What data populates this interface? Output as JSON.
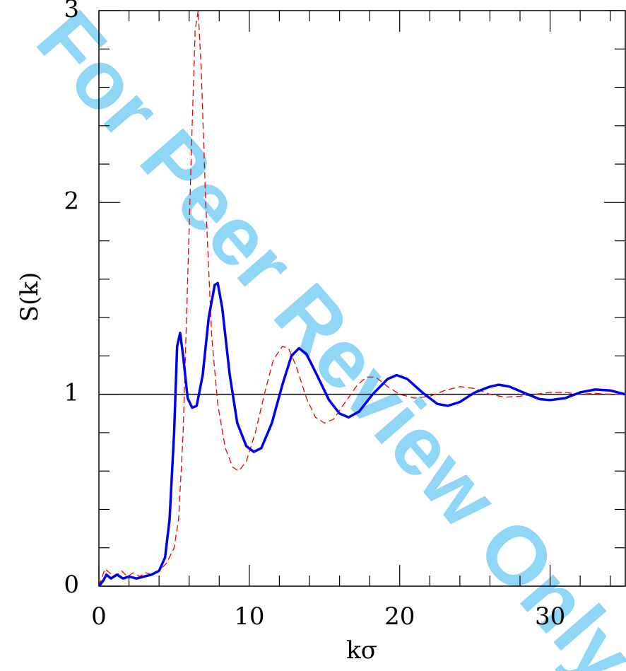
{
  "chart_data": {
    "type": "line",
    "watermark": "For Peer Review Only",
    "xlabel": "kσ",
    "ylabel": "S(k)",
    "xlim": [
      0,
      35
    ],
    "ylim": [
      0,
      3
    ],
    "xticks": [
      0,
      10,
      20,
      30
    ],
    "yticks": [
      0,
      1,
      2,
      3
    ],
    "xminorticks": [
      2,
      4,
      6,
      8,
      12,
      14,
      16,
      18,
      22,
      24,
      26,
      28,
      32,
      34
    ],
    "yminorticks": [
      0.2,
      0.4,
      0.6,
      0.8,
      1.2,
      1.4,
      1.6,
      1.8,
      2.2,
      2.4,
      2.6,
      2.8
    ],
    "hline": 1,
    "series": [
      {
        "color": "#0000ee",
        "style": "solid",
        "x": [
          0,
          0.3,
          0.5,
          0.8,
          1.2,
          1.6,
          2,
          2.5,
          3,
          3.5,
          4,
          4.4,
          4.7,
          5,
          5.2,
          5.4,
          5.6,
          5.9,
          6.2,
          6.5,
          6.9,
          7.3,
          7.7,
          7.9,
          8.2,
          8.7,
          9.2,
          9.8,
          10.3,
          10.8,
          11.5,
          12.2,
          12.8,
          13.3,
          13.8,
          14.5,
          15.3,
          16,
          16.6,
          17.3,
          18.2,
          19.2,
          19.8,
          20.5,
          21.5,
          22.5,
          23.2,
          24,
          25,
          26,
          26.6,
          27.3,
          28.5,
          29.3,
          30,
          31,
          32,
          33,
          34,
          35
        ],
        "values": [
          0,
          0.03,
          0.06,
          0.04,
          0.06,
          0.04,
          0.05,
          0.04,
          0.05,
          0.06,
          0.08,
          0.15,
          0.35,
          0.8,
          1.25,
          1.32,
          1.2,
          0.98,
          0.93,
          0.94,
          1.1,
          1.4,
          1.57,
          1.58,
          1.45,
          1.1,
          0.85,
          0.73,
          0.7,
          0.72,
          0.85,
          1.05,
          1.2,
          1.24,
          1.21,
          1.1,
          0.97,
          0.9,
          0.88,
          0.91,
          1.0,
          1.08,
          1.1,
          1.08,
          1.01,
          0.95,
          0.94,
          0.96,
          1.01,
          1.04,
          1.05,
          1.04,
          1.0,
          0.975,
          0.97,
          0.98,
          1.01,
          1.025,
          1.02,
          1.0
        ]
      },
      {
        "color": "#ee0000",
        "style": "dashed",
        "x": [
          0,
          0.4,
          0.7,
          1.1,
          1.5,
          1.9,
          2.3,
          2.7,
          3.1,
          3.5,
          4,
          4.5,
          5,
          5.3,
          5.6,
          5.9,
          6.2,
          6.4,
          6.6,
          6.8,
          7.1,
          7.5,
          7.9,
          8.4,
          8.9,
          9.3,
          9.8,
          10.4,
          11,
          11.6,
          12.2,
          12.6,
          13.1,
          13.8,
          14.4,
          15,
          15.6,
          16.3,
          17.2,
          17.8,
          18.4,
          19.2,
          20,
          21,
          22,
          23,
          24,
          25,
          26,
          27,
          28,
          29,
          30,
          31,
          32,
          33,
          34,
          35
        ],
        "values": [
          0,
          0.09,
          0.07,
          0.05,
          0.08,
          0.05,
          0.07,
          0.05,
          0.07,
          0.06,
          0.08,
          0.12,
          0.2,
          0.35,
          0.8,
          1.6,
          2.4,
          2.9,
          3.0,
          2.7,
          2.0,
          1.3,
          0.95,
          0.72,
          0.62,
          0.6,
          0.65,
          0.8,
          1.0,
          1.18,
          1.25,
          1.24,
          1.15,
          0.98,
          0.88,
          0.85,
          0.87,
          0.95,
          1.05,
          1.09,
          1.09,
          1.04,
          1.0,
          0.98,
          0.99,
          1.02,
          1.04,
          1.03,
          1.0,
          0.985,
          0.99,
          1.0,
          1.01,
          1.01,
          1.0,
          1.005,
          1.0,
          1.0
        ]
      }
    ]
  }
}
